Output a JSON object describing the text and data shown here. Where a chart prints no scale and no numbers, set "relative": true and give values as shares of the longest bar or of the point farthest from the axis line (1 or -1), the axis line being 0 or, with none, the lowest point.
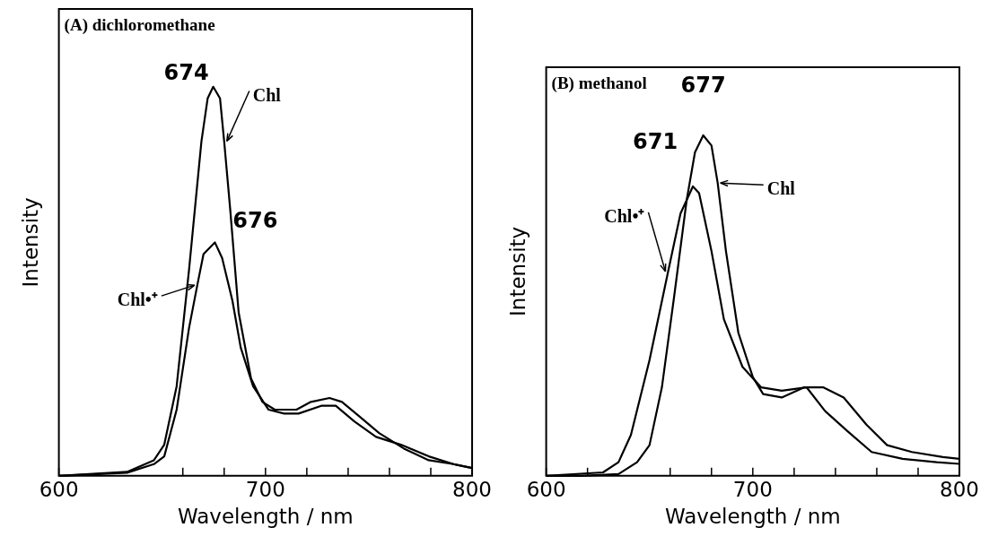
{
  "chart_data": [
    {
      "type": "line",
      "title": "(A) dichloromethane",
      "xlabel": "Wavelength / nm",
      "ylabel": "Intensity",
      "relative": true,
      "xlim": [
        600,
        800
      ],
      "xticks": [
        600,
        {
          "value": 660,
          "label": null
        },
        {
          "value": 680,
          "label": null
        },
        700,
        {
          "value": 720,
          "label": null
        },
        {
          "value": 740,
          "label": null
        },
        {
          "value": 760,
          "label": null
        },
        {
          "value": 780,
          "label": null
        },
        800
      ],
      "grid": false,
      "marker": "none",
      "line_style": "solid",
      "series": [
        {
          "name": "Chl",
          "color": "#000000",
          "x": [
            600,
            633,
            646,
            651,
            657,
            663,
            669,
            672,
            674.7,
            678,
            680,
            683,
            687,
            693,
            698.5,
            704.5,
            715,
            722,
            731,
            737,
            746,
            755,
            767,
            779,
            791,
            800
          ],
          "values": [
            0,
            0.01,
            0.04,
            0.08,
            0.23,
            0.53,
            0.86,
            0.97,
            1,
            0.97,
            0.86,
            0.68,
            0.42,
            0.25,
            0.19,
            0.17,
            0.17,
            0.19,
            0.2,
            0.19,
            0.15,
            0.11,
            0.07,
            0.04,
            0.03,
            0.02
          ]
        },
        {
          "name": "Chl•⁺",
          "color": "#000000",
          "x": [
            600,
            633,
            646,
            651,
            657,
            663,
            667,
            670,
            675.5,
            679,
            684,
            688,
            694,
            701.5,
            709,
            716,
            727,
            734,
            743,
            753.5,
            765.5,
            779,
            791,
            800
          ],
          "values": [
            0,
            0.008,
            0.03,
            0.05,
            0.17,
            0.38,
            0.49,
            0.57,
            0.6,
            0.56,
            0.45,
            0.33,
            0.23,
            0.17,
            0.16,
            0.16,
            0.18,
            0.18,
            0.14,
            0.1,
            0.08,
            0.05,
            0.03,
            0.02
          ]
        }
      ],
      "annotations": [
        {
          "text": "674",
          "x": 674.7,
          "y": 1
        },
        {
          "text": "676",
          "x": 675.5,
          "y": 0.6
        }
      ]
    },
    {
      "type": "line",
      "title": "(B) methanol",
      "xlabel": "Wavelength / nm",
      "ylabel": "Intensity",
      "relative": true,
      "xlim": [
        600,
        800
      ],
      "xticks": [
        600,
        {
          "value": 620,
          "label": null
        },
        {
          "value": 660,
          "label": null
        },
        {
          "value": 680,
          "label": null
        },
        700,
        {
          "value": 720,
          "label": null
        },
        {
          "value": 740,
          "label": null
        },
        {
          "value": 760,
          "label": null
        },
        {
          "value": 780,
          "label": null
        },
        800
      ],
      "grid": false,
      "marker": "none",
      "line_style": "solid",
      "series": [
        {
          "name": "Chl",
          "color": "#000000",
          "x": [
            600,
            617,
            635,
            644,
            650,
            656,
            662,
            668,
            672,
            676,
            680,
            683,
            687,
            693,
            700,
            705,
            714,
            725,
            734,
            744,
            755,
            765,
            777,
            792,
            800
          ],
          "values": [
            0,
            0,
            0.005,
            0.04,
            0.09,
            0.26,
            0.53,
            0.81,
            0.95,
            1,
            0.97,
            0.86,
            0.66,
            0.42,
            0.29,
            0.24,
            0.23,
            0.26,
            0.26,
            0.23,
            0.15,
            0.09,
            0.07,
            0.055,
            0.05
          ]
        },
        {
          "name": "Chl•⁺",
          "color": "#000000",
          "x": [
            600,
            627.5,
            635,
            641,
            650,
            659,
            665,
            671,
            674,
            680,
            686,
            695,
            704,
            714,
            726,
            735,
            746,
            757.5,
            772.5,
            789,
            800
          ],
          "values": [
            0,
            0.01,
            0.04,
            0.12,
            0.34,
            0.6,
            0.77,
            0.85,
            0.83,
            0.66,
            0.46,
            0.32,
            0.26,
            0.25,
            0.26,
            0.19,
            0.13,
            0.07,
            0.05,
            0.04,
            0.035
          ]
        }
      ],
      "annotations": [
        {
          "text": "671",
          "x": 671,
          "y": 0.85
        },
        {
          "text": "677",
          "x": 676,
          "y": 1
        }
      ]
    }
  ]
}
